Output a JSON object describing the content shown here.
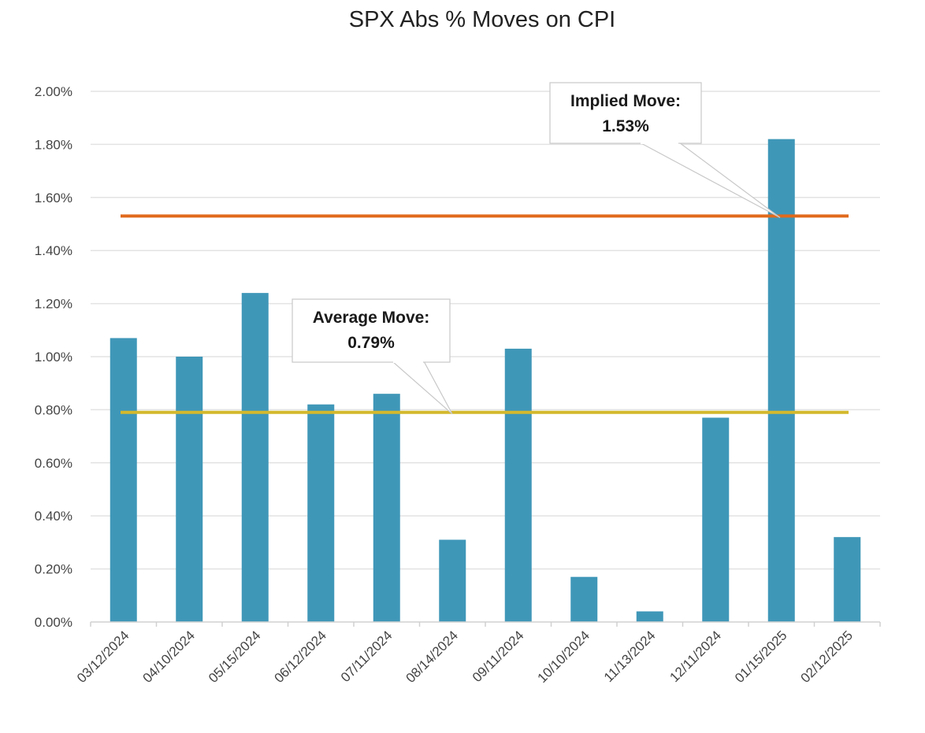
{
  "chart_data": {
    "type": "bar",
    "title": "SPX Abs % Moves on CPI",
    "xlabel": "",
    "ylabel": "",
    "ylim": [
      0,
      2.0
    ],
    "y_ticks": [
      0.0,
      0.2,
      0.4,
      0.6,
      0.8,
      1.0,
      1.2,
      1.4,
      1.6,
      1.8,
      2.0
    ],
    "y_tick_labels": [
      "0.00%",
      "0.20%",
      "0.40%",
      "0.60%",
      "0.80%",
      "1.00%",
      "1.20%",
      "1.40%",
      "1.60%",
      "1.80%",
      "2.00%"
    ],
    "grid": true,
    "categories": [
      "03/12/2024",
      "04/10/2024",
      "05/15/2024",
      "06/12/2024",
      "07/11/2024",
      "08/14/2024",
      "09/11/2024",
      "10/10/2024",
      "11/13/2024",
      "12/11/2024",
      "01/15/2025",
      "02/12/2025"
    ],
    "values": [
      1.07,
      1.0,
      1.24,
      0.82,
      0.86,
      0.31,
      1.03,
      0.17,
      0.04,
      0.77,
      1.82,
      0.32
    ],
    "bar_color": "#3f97b8",
    "reference_lines": [
      {
        "name": "implied-move",
        "value": 1.53,
        "color": "#e06a1b",
        "label_line1": "Implied Move:",
        "label_line2": "1.53%"
      },
      {
        "name": "average-move",
        "value": 0.79,
        "color": "#d4b82c",
        "label_line1": "Average Move:",
        "label_line2": "0.79%"
      }
    ]
  }
}
